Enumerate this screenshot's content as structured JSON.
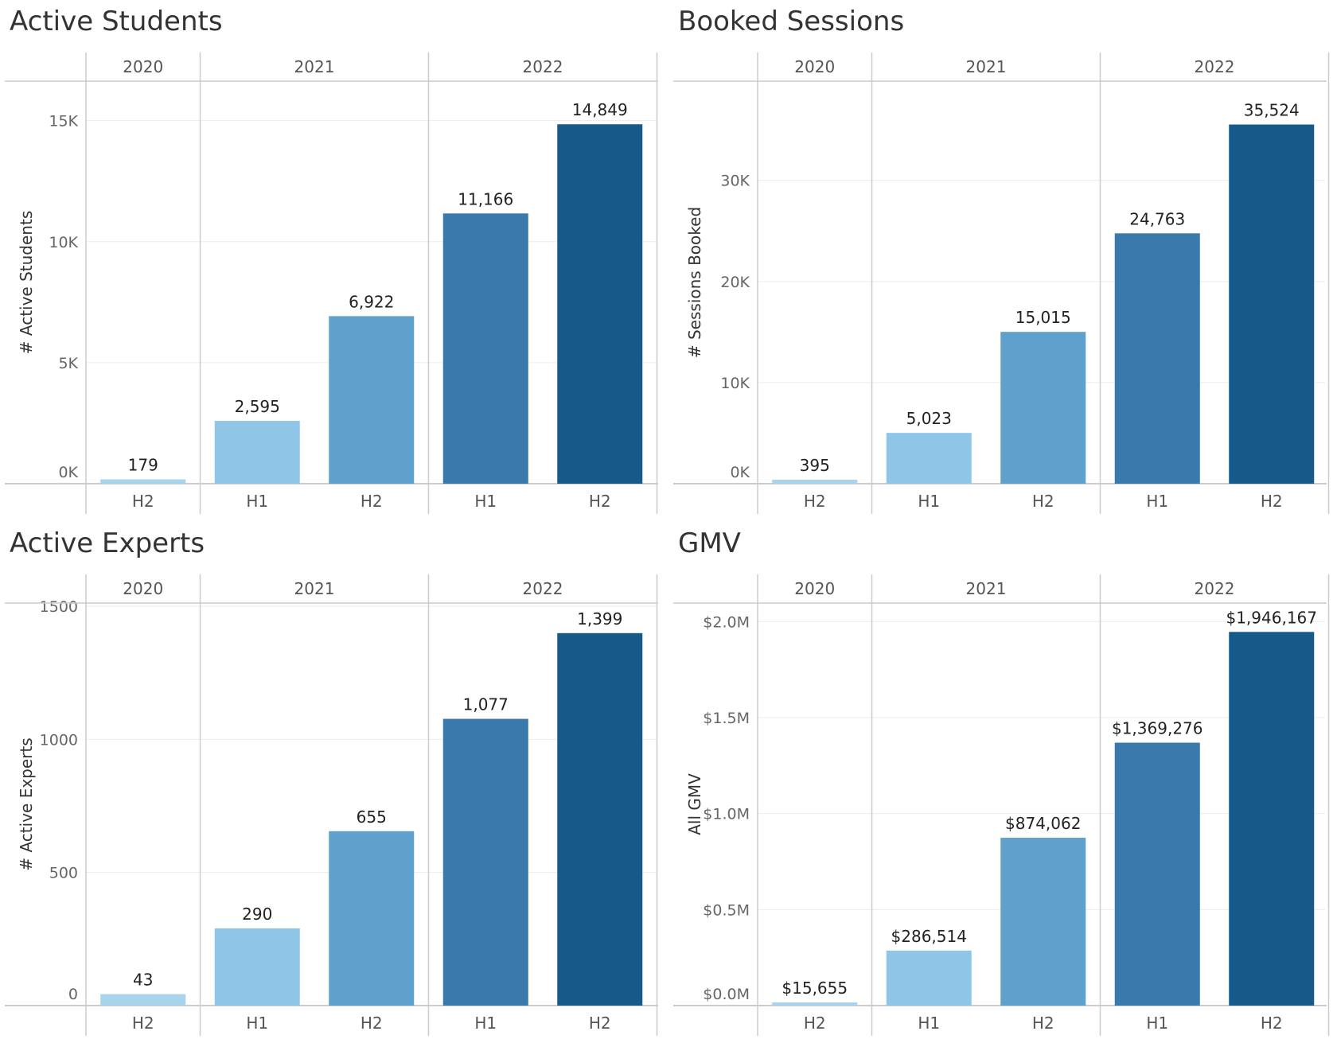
{
  "chart_data": [
    {
      "type": "bar",
      "title": "Active Students",
      "ylabel": "# Active Students",
      "years": [
        {
          "label": "2020",
          "halves": [
            "H2"
          ]
        },
        {
          "label": "2021",
          "halves": [
            "H1",
            "H2"
          ]
        },
        {
          "label": "2022",
          "halves": [
            "H1",
            "H2"
          ]
        }
      ],
      "categories": [
        "2020 H2",
        "2021 H1",
        "2021 H2",
        "2022 H1",
        "2022 H2"
      ],
      "values": [
        179,
        2595,
        6922,
        11166,
        14849
      ],
      "value_labels": [
        "179",
        "2,595",
        "6,922",
        "11,166",
        "14,849"
      ],
      "ylim": [
        0,
        16500
      ],
      "yticks": [
        0,
        5000,
        10000,
        15000
      ],
      "ytick_labels": [
        "0K",
        "5K",
        "10K",
        "15K"
      ],
      "colors": [
        "#a8d3ec",
        "#8fc6e7",
        "#5fa0cc",
        "#3a79ab",
        "#165a8a"
      ]
    },
    {
      "type": "bar",
      "title": "Booked Sessions",
      "ylabel": "# Sessions Booked",
      "years": [
        {
          "label": "2020",
          "halves": [
            "H2"
          ]
        },
        {
          "label": "2021",
          "halves": [
            "H1",
            "H2"
          ]
        },
        {
          "label": "2022",
          "halves": [
            "H1",
            "H2"
          ]
        }
      ],
      "categories": [
        "2020 H2",
        "2021 H1",
        "2021 H2",
        "2022 H1",
        "2022 H2"
      ],
      "values": [
        395,
        5023,
        15015,
        24763,
        35524
      ],
      "value_labels": [
        "395",
        "5,023",
        "15,015",
        "24,763",
        "35,524"
      ],
      "ylim": [
        0,
        39500
      ],
      "yticks": [
        0,
        10000,
        20000,
        30000
      ],
      "ytick_labels": [
        "0K",
        "10K",
        "20K",
        "30K"
      ],
      "colors": [
        "#a8d3ec",
        "#8fc6e7",
        "#5fa0cc",
        "#3a79ab",
        "#165a8a"
      ]
    },
    {
      "type": "bar",
      "title": "Active Experts",
      "ylabel": "# Active Experts",
      "years": [
        {
          "label": "2020",
          "halves": [
            "H2"
          ]
        },
        {
          "label": "2021",
          "halves": [
            "H1",
            "H2"
          ]
        },
        {
          "label": "2022",
          "halves": [
            "H1",
            "H2"
          ]
        }
      ],
      "categories": [
        "2020 H2",
        "2021 H1",
        "2021 H2",
        "2022 H1",
        "2022 H2"
      ],
      "values": [
        43,
        290,
        655,
        1077,
        1399
      ],
      "value_labels": [
        "43",
        "290",
        "655",
        "1,077",
        "1,399"
      ],
      "ylim": [
        0,
        1500
      ],
      "yticks": [
        0,
        500,
        1000,
        1500
      ],
      "ytick_labels": [
        "0",
        "500",
        "1000",
        "1500"
      ],
      "colors": [
        "#a8d3ec",
        "#8fc6e7",
        "#5fa0cc",
        "#3a79ab",
        "#165a8a"
      ]
    },
    {
      "type": "bar",
      "title": "GMV",
      "ylabel": "All GMV",
      "years": [
        {
          "label": "2020",
          "halves": [
            "H2"
          ]
        },
        {
          "label": "2021",
          "halves": [
            "H1",
            "H2"
          ]
        },
        {
          "label": "2022",
          "halves": [
            "H1",
            "H2"
          ]
        }
      ],
      "categories": [
        "2020 H2",
        "2021 H1",
        "2021 H2",
        "2022 H1",
        "2022 H2"
      ],
      "values": [
        15655,
        286514,
        874062,
        1369276,
        1946167
      ],
      "value_labels": [
        "$15,655",
        "$286,514",
        "$874,062",
        "$1,369,276",
        "$1,946,167"
      ],
      "ylim": [
        0,
        2080000
      ],
      "yticks": [
        0,
        500000,
        1000000,
        1500000,
        2000000
      ],
      "ytick_labels": [
        "$0.0M",
        "$0.5M",
        "$1.0M",
        "$1.5M",
        "$2.0M"
      ],
      "colors": [
        "#a8d3ec",
        "#8fc6e7",
        "#5fa0cc",
        "#3a79ab",
        "#165a8a"
      ]
    }
  ]
}
